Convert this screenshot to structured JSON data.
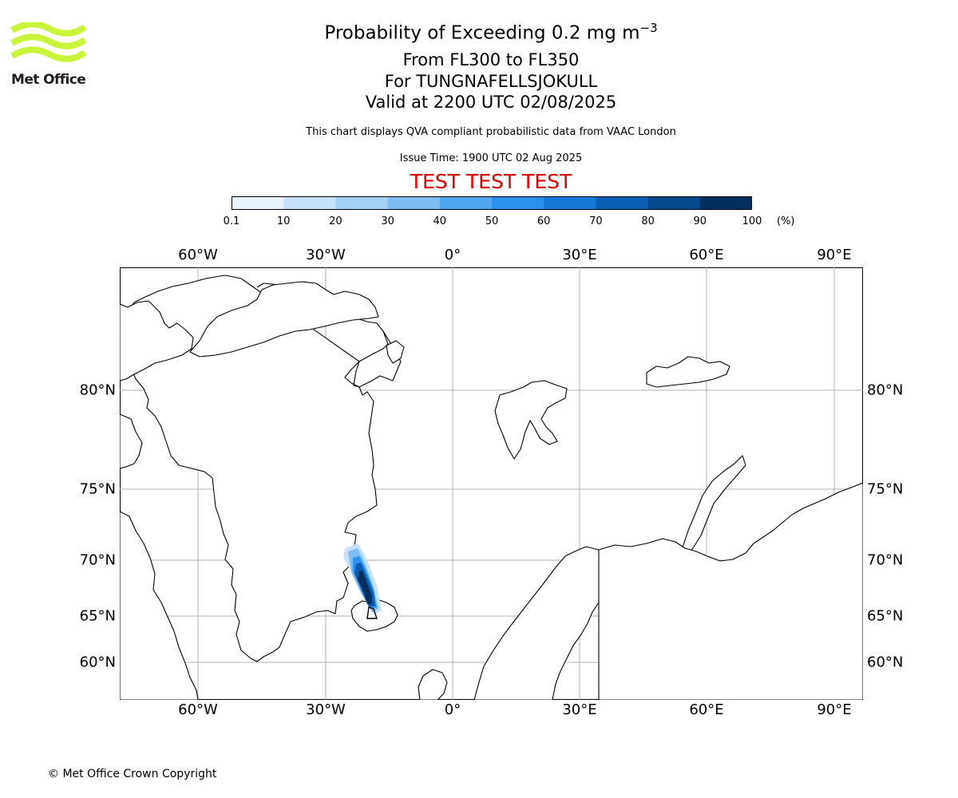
{
  "logo": {
    "text": "Met Office",
    "color": "#c8f53a"
  },
  "title": {
    "main": "Probability of Exceeding 0.2 mg m",
    "superscript": "−3",
    "line2": "From FL300 to FL350",
    "line3": "For TUNGNAFELLSJOKULL",
    "line4": "Valid at 2200 UTC 02/08/2025"
  },
  "subtitle": "This chart displays QVA compliant probabilistic data from VAAC London",
  "issue_time": "Issue Time: 1900 UTC 02 Aug 2025",
  "test_banner": "TEST TEST TEST",
  "colorbar": {
    "ticks": [
      "0.1",
      "10",
      "20",
      "30",
      "40",
      "50",
      "60",
      "70",
      "80",
      "90",
      "100"
    ],
    "unit": "(%)",
    "colors": [
      "#e8f3ff",
      "#c6e2fb",
      "#a3d0f7",
      "#7dbdf4",
      "#51a6f0",
      "#2b91ec",
      "#1578d6",
      "#0a5fb4",
      "#064a8e",
      "#032f5e"
    ]
  },
  "map": {
    "lon_labels": [
      "60°W",
      "30°W",
      "0°",
      "30°E",
      "60°E",
      "90°E"
    ],
    "lat_labels": [
      "80°N",
      "75°N",
      "70°N",
      "65°N",
      "60°N"
    ],
    "grid_color": "#b0b0b0",
    "plume": {
      "source_lat": 64.6,
      "source_lon": -17.6,
      "direction": "north-west"
    }
  },
  "copyright": "© Met Office Crown Copyright"
}
